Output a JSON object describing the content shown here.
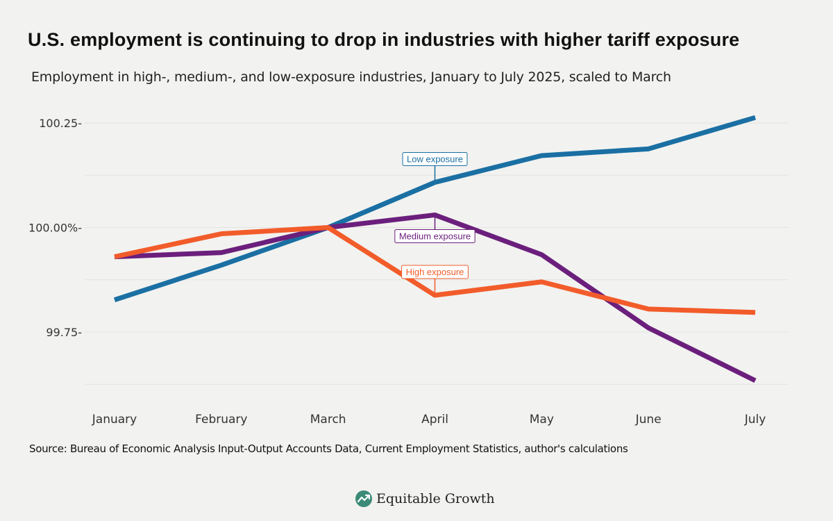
{
  "title": "U.S. employment is continuing to drop in industries with higher tariff exposure",
  "subtitle": "Employment in high-, medium-, and low-exposure industries, January to July 2025, scaled to March",
  "source": "Source: Bureau of Economic Analysis Input-Output Accounts Data, Current Employment Statistics, author's calculations",
  "brand": {
    "name": "Equitable Growth",
    "icon": "growth-chart-icon"
  },
  "colors": {
    "low": "#1a6fa3",
    "medium": "#6b1f7c",
    "high": "#f25c2a",
    "background": "#f2f2f0",
    "gridline": "#e3e3e1"
  },
  "chart_data": {
    "type": "line",
    "title": "U.S. employment is continuing to drop in industries with higher tariff exposure",
    "xlabel": "",
    "ylabel": "",
    "categories": [
      "January",
      "February",
      "March",
      "April",
      "May",
      "June",
      "July"
    ],
    "ylim": [
      99.62,
      100.28
    ],
    "yticks": [
      99.75,
      100.0,
      100.25
    ],
    "ytick_labels": [
      "99.75-",
      "100.00%-",
      "100.25-"
    ],
    "grid": true,
    "series": [
      {
        "name": "Low exposure",
        "key": "low",
        "values": [
          99.827,
          99.91,
          100.0,
          100.108,
          100.172,
          100.188,
          100.263
        ],
        "label_at": 3,
        "label_side": "above"
      },
      {
        "name": "Medium exposure",
        "key": "medium",
        "values": [
          99.93,
          99.94,
          100.0,
          100.03,
          99.935,
          99.76,
          99.634
        ],
        "label_at": 3,
        "label_side": "below"
      },
      {
        "name": "High exposure",
        "key": "high",
        "values": [
          99.93,
          99.985,
          100.0,
          99.838,
          99.87,
          99.805,
          99.797
        ],
        "label_at": 3,
        "label_side": "above"
      }
    ]
  }
}
